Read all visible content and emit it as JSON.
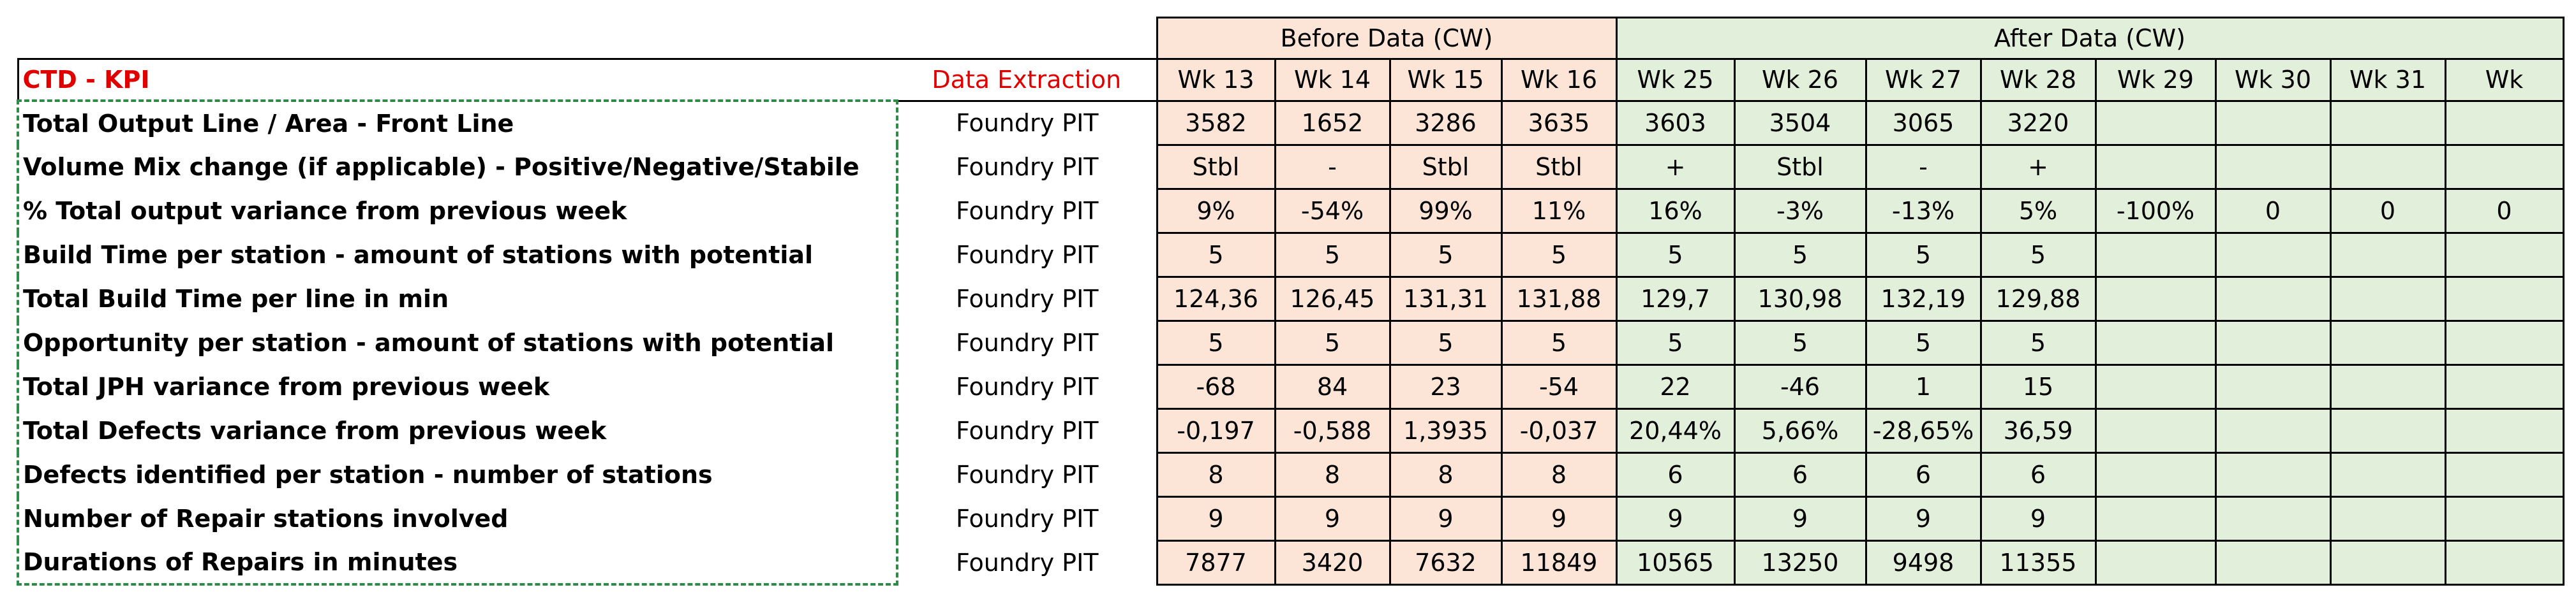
{
  "header": {
    "before_label": "Before Data (CW)",
    "after_label": "After Data (CW)",
    "kpi_label": "CTD - KPI",
    "extraction_label": "Data Extraction",
    "before_weeks": [
      "Wk 13",
      "Wk 14",
      "Wk 15",
      "Wk 16"
    ],
    "after_weeks": [
      "Wk 25",
      "Wk 26",
      "Wk 27",
      "Wk 28",
      "Wk 29",
      "Wk 30",
      "Wk 31",
      "Wk"
    ]
  },
  "rows": [
    {
      "kpi": "Total Output Line / Area - Front Line",
      "source": "Foundry PIT",
      "values": [
        "3582",
        "1652",
        "3286",
        "3635",
        "3603",
        "3504",
        "3065",
        "3220",
        null,
        null,
        null,
        null
      ]
    },
    {
      "kpi": "Volume Mix change (if applicable) - Positive/Negative/Stabile",
      "source": "Foundry PIT",
      "values": [
        "Stbl",
        "-",
        "Stbl",
        "Stbl",
        "+",
        "Stbl",
        "-",
        "+",
        null,
        null,
        null,
        null
      ]
    },
    {
      "kpi": "% Total output variance from previous week",
      "source": "Foundry PIT",
      "values": [
        "9%",
        "-54%",
        "99%",
        "11%",
        "16%",
        "-3%",
        "-13%",
        "5%",
        "-100%",
        "0",
        "0",
        "0"
      ]
    },
    {
      "kpi": "Build Time per station - amount of stations with potential",
      "source": "Foundry PIT",
      "values": [
        "5",
        "5",
        "5",
        "5",
        "5",
        "5",
        "5",
        "5",
        null,
        null,
        null,
        null
      ]
    },
    {
      "kpi": "Total Build Time per line in min",
      "source": "Foundry PIT",
      "values": [
        "124,36",
        "126,45",
        "131,31",
        "131,88",
        "129,7",
        "130,98",
        "132,19",
        "129,88",
        null,
        null,
        null,
        null
      ]
    },
    {
      "kpi": "Opportunity per station - amount of stations with potential",
      "source": "Foundry PIT",
      "values": [
        "5",
        "5",
        "5",
        "5",
        "5",
        "5",
        "5",
        "5",
        null,
        null,
        null,
        null
      ]
    },
    {
      "kpi": "Total JPH variance from previous week",
      "source": "Foundry PIT",
      "values": [
        "-68",
        "84",
        "23",
        "-54",
        "22",
        "-46",
        "1",
        "15",
        null,
        null,
        null,
        null
      ]
    },
    {
      "kpi": "Total Defects variance from previous week",
      "source": "Foundry PIT",
      "values": [
        "-0,197",
        "-0,588",
        "1,3935",
        "-0,037",
        "20,44%",
        "5,66%",
        "-28,65%",
        "36,59",
        null,
        null,
        null,
        null
      ]
    },
    {
      "kpi": "Defects identified per station - number of stations",
      "source": "Foundry PIT",
      "values": [
        "8",
        "8",
        "8",
        "8",
        "6",
        "6",
        "6",
        "6",
        null,
        null,
        null,
        null
      ]
    },
    {
      "kpi": "Number of Repair stations involved",
      "source": "Foundry PIT",
      "values": [
        "9",
        "9",
        "9",
        "9",
        "9",
        "9",
        "9",
        "9",
        null,
        null,
        null,
        null
      ]
    },
    {
      "kpi": "Durations of Repairs in minutes",
      "source": "Foundry PIT",
      "values": [
        "7877",
        "3420",
        "7632",
        "11849",
        "10565",
        "13250",
        "9498",
        "11355",
        null,
        null,
        null,
        null
      ]
    }
  ]
}
